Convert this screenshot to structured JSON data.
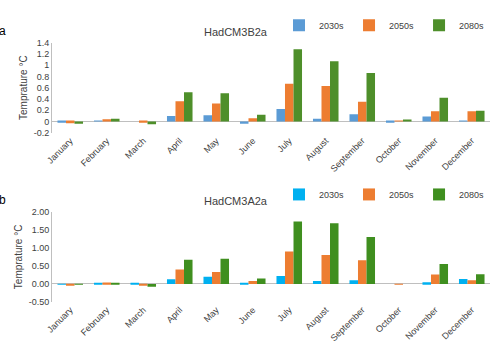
{
  "chart_data": [
    {
      "type": "bar",
      "title": "HadCM3B2a",
      "annotations": [
        "a"
      ],
      "y_label": "Temprature °C",
      "categories": [
        "January",
        "February",
        "March",
        "April",
        "May",
        "June",
        "July",
        "August",
        "September",
        "October",
        "November",
        "December"
      ],
      "series": [
        {
          "name": "2030s",
          "color": "#5B9BD5",
          "values": [
            -0.02,
            0.01,
            0.0,
            0.1,
            0.11,
            -0.04,
            0.22,
            0.05,
            0.13,
            -0.02,
            0.09,
            0.01
          ]
        },
        {
          "name": "2050s",
          "color": "#ED7D31",
          "values": [
            -0.03,
            0.04,
            -0.02,
            0.36,
            0.32,
            0.06,
            0.67,
            0.63,
            0.35,
            0.01,
            0.18,
            0.18
          ]
        },
        {
          "name": "2080s",
          "color": "#4E8F2A",
          "values": [
            -0.04,
            0.05,
            -0.05,
            0.52,
            0.5,
            0.12,
            1.28,
            1.07,
            0.86,
            0.02,
            0.42,
            0.19
          ]
        }
      ],
      "ylim": [
        -0.2,
        1.4
      ],
      "yticks": [
        -0.2,
        0,
        0.2,
        0.4,
        0.6,
        0.8,
        1,
        1.2,
        1.4
      ],
      "grid": false,
      "legend": "top right"
    },
    {
      "type": "bar",
      "title": "HadCM3A2a",
      "annotations": [
        "b"
      ],
      "y_label": "Temprature °C",
      "categories": [
        "January",
        "February",
        "March",
        "April",
        "May",
        "June",
        "July",
        "August",
        "September",
        "October",
        "November",
        "December"
      ],
      "series": [
        {
          "name": "2030s",
          "color": "#00B0F0",
          "values": [
            -0.01,
            0.02,
            0.02,
            0.13,
            0.2,
            0.03,
            0.22,
            0.08,
            0.1,
            0.0,
            0.05,
            0.14
          ]
        },
        {
          "name": "2050s",
          "color": "#ED7D31",
          "values": [
            -0.03,
            0.04,
            -0.04,
            0.4,
            0.33,
            0.08,
            0.9,
            0.8,
            0.66,
            -0.01,
            0.26,
            0.1
          ]
        },
        {
          "name": "2080s",
          "color": "#3F8F1F",
          "values": [
            -0.02,
            0.03,
            -0.08,
            0.67,
            0.7,
            0.15,
            1.73,
            1.68,
            1.3,
            0.0,
            0.55,
            0.27
          ]
        }
      ],
      "ylim": [
        -0.5,
        2.0
      ],
      "yticks": [
        {
          "value": -0.5,
          "label": "-0.50"
        },
        {
          "value": 0,
          "label": "0.00"
        },
        {
          "value": 0.5,
          "label": "0.50"
        },
        {
          "value": 1.0,
          "label": "1.00"
        },
        {
          "value": 1.5,
          "label": "1.50"
        },
        {
          "value": 2.0,
          "label": "2.00"
        }
      ],
      "grid": false,
      "legend": "top right"
    }
  ]
}
